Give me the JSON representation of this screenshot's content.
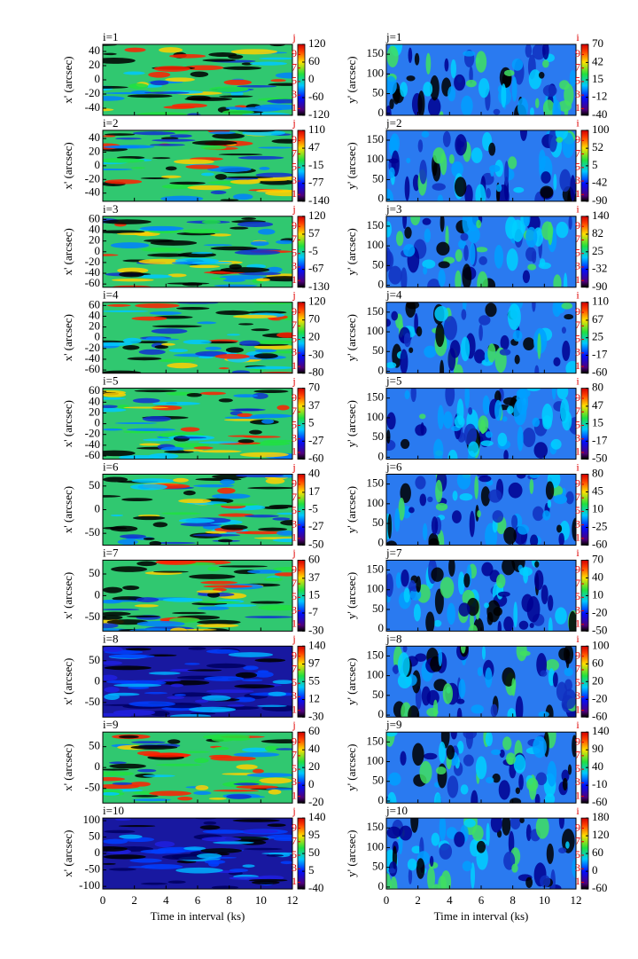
{
  "chart_data": [
    {
      "type": "heatmap",
      "title": "i=1",
      "ylabel": "x' (arcsec)",
      "xlim": [
        0,
        12
      ],
      "xticks": [
        0,
        2,
        4,
        6,
        8,
        10,
        12
      ],
      "ylim": [
        -50,
        50
      ],
      "yticks": [
        40,
        20,
        0,
        -20,
        -40
      ],
      "colorbar": {
        "index_label": "j",
        "index_lim": [
          0,
          10.5
        ],
        "index_ticks": [
          9,
          7,
          5,
          3,
          1
        ],
        "lim": [
          -120,
          120
        ],
        "ticks": [
          120,
          60,
          0,
          -60,
          -120
        ]
      }
    },
    {
      "type": "heatmap",
      "title": "j=1",
      "ylabel": "y' (arcsec)",
      "xlim": [
        0,
        12
      ],
      "xticks": [
        0,
        2,
        4,
        6,
        8,
        10,
        12
      ],
      "ylim": [
        -5,
        175
      ],
      "yticks": [
        150,
        100,
        50,
        0
      ],
      "colorbar": {
        "index_label": "i",
        "index_lim": [
          0,
          10.5
        ],
        "index_ticks": [
          9,
          7,
          5,
          3,
          1
        ],
        "lim": [
          -40,
          70
        ],
        "ticks": [
          70,
          42,
          15,
          -12,
          -40
        ]
      }
    },
    {
      "type": "heatmap",
      "title": "i=2",
      "ylabel": "x' (arcsec)",
      "xlim": [
        0,
        12
      ],
      "xticks": [
        0,
        2,
        4,
        6,
        8,
        10,
        12
      ],
      "ylim": [
        -52,
        52
      ],
      "yticks": [
        40,
        20,
        0,
        -20,
        -40
      ],
      "colorbar": {
        "index_label": "j",
        "index_lim": [
          0,
          10.5
        ],
        "index_ticks": [
          9,
          7,
          5,
          3,
          1
        ],
        "lim": [
          -140,
          110
        ],
        "ticks": [
          110,
          47,
          -15,
          -77,
          -140
        ]
      }
    },
    {
      "type": "heatmap",
      "title": "j=2",
      "ylabel": "y' (arcsec)",
      "xlim": [
        0,
        12
      ],
      "xticks": [
        0,
        2,
        4,
        6,
        8,
        10,
        12
      ],
      "ylim": [
        -5,
        175
      ],
      "yticks": [
        150,
        100,
        50,
        0
      ],
      "colorbar": {
        "index_label": "i",
        "index_lim": [
          0,
          10.5
        ],
        "index_ticks": [
          9,
          7,
          5,
          3,
          1
        ],
        "lim": [
          -90,
          100
        ],
        "ticks": [
          100,
          52,
          5,
          -42,
          -90
        ]
      }
    },
    {
      "type": "heatmap",
      "title": "i=3",
      "ylabel": "x' (arcsec)",
      "xlim": [
        0,
        12
      ],
      "xticks": [
        0,
        2,
        4,
        6,
        8,
        10,
        12
      ],
      "ylim": [
        -66,
        66
      ],
      "yticks": [
        60,
        40,
        20,
        0,
        -20,
        -40,
        -60
      ],
      "colorbar": {
        "index_label": "j",
        "index_lim": [
          0,
          10.5
        ],
        "index_ticks": [
          9,
          7,
          5,
          3,
          1
        ],
        "lim": [
          -130,
          120
        ],
        "ticks": [
          120,
          57,
          -5,
          -67,
          -130
        ]
      }
    },
    {
      "type": "heatmap",
      "title": "j=3",
      "ylabel": "y' (arcsec)",
      "xlim": [
        0,
        12
      ],
      "xticks": [
        0,
        2,
        4,
        6,
        8,
        10,
        12
      ],
      "ylim": [
        -5,
        175
      ],
      "yticks": [
        150,
        100,
        50,
        0
      ],
      "colorbar": {
        "index_label": "i",
        "index_lim": [
          0,
          10.5
        ],
        "index_ticks": [
          9,
          7,
          5,
          3,
          1
        ],
        "lim": [
          -90,
          140
        ],
        "ticks": [
          140,
          82,
          25,
          -32,
          -90
        ]
      }
    },
    {
      "type": "heatmap",
      "title": "i=4",
      "ylabel": "x' (arcsec)",
      "xlim": [
        0,
        12
      ],
      "xticks": [
        0,
        2,
        4,
        6,
        8,
        10,
        12
      ],
      "ylim": [
        -66,
        66
      ],
      "yticks": [
        60,
        40,
        20,
        0,
        -20,
        -40,
        -60
      ],
      "colorbar": {
        "index_label": "j",
        "index_lim": [
          0,
          10.5
        ],
        "index_ticks": [
          9,
          7,
          5,
          3,
          1
        ],
        "lim": [
          -80,
          120
        ],
        "ticks": [
          120,
          70,
          20,
          -30,
          -80
        ]
      }
    },
    {
      "type": "heatmap",
      "title": "j=4",
      "ylabel": "y' (arcsec)",
      "xlim": [
        0,
        12
      ],
      "xticks": [
        0,
        2,
        4,
        6,
        8,
        10,
        12
      ],
      "ylim": [
        -5,
        175
      ],
      "yticks": [
        150,
        100,
        50,
        0
      ],
      "colorbar": {
        "index_label": "i",
        "index_lim": [
          0,
          10.5
        ],
        "index_ticks": [
          9,
          7,
          5,
          3,
          1
        ],
        "lim": [
          -60,
          110
        ],
        "ticks": [
          110,
          67,
          25,
          -17,
          -60
        ]
      }
    },
    {
      "type": "heatmap",
      "title": "i=5",
      "ylabel": "x' (arcsec)",
      "xlim": [
        0,
        12
      ],
      "xticks": [
        0,
        2,
        4,
        6,
        8,
        10,
        12
      ],
      "ylim": [
        -66,
        66
      ],
      "yticks": [
        60,
        40,
        20,
        0,
        -20,
        -40,
        -60
      ],
      "colorbar": {
        "index_label": "j",
        "index_lim": [
          0,
          10.5
        ],
        "index_ticks": [
          9,
          7,
          5,
          3,
          1
        ],
        "lim": [
          -60,
          70
        ],
        "ticks": [
          70,
          37,
          5,
          -27,
          -60
        ]
      }
    },
    {
      "type": "heatmap",
      "title": "j=5",
      "ylabel": "y' (arcsec)",
      "xlim": [
        0,
        12
      ],
      "xticks": [
        0,
        2,
        4,
        6,
        8,
        10,
        12
      ],
      "ylim": [
        -5,
        175
      ],
      "yticks": [
        150,
        100,
        50,
        0
      ],
      "colorbar": {
        "index_label": "i",
        "index_lim": [
          0,
          10.5
        ],
        "index_ticks": [
          9,
          7,
          5,
          3,
          1
        ],
        "lim": [
          -50,
          80
        ],
        "ticks": [
          80,
          47,
          15,
          -17,
          -50
        ]
      }
    },
    {
      "type": "heatmap",
      "title": "i=6",
      "ylabel": "x' (arcsec)",
      "xlim": [
        0,
        12
      ],
      "xticks": [
        0,
        2,
        4,
        6,
        8,
        10,
        12
      ],
      "ylim": [
        -75,
        75
      ],
      "yticks": [
        50,
        0,
        -50
      ],
      "colorbar": {
        "index_label": "j",
        "index_lim": [
          0,
          10.5
        ],
        "index_ticks": [
          9,
          7,
          5,
          3,
          1
        ],
        "lim": [
          -50,
          40
        ],
        "ticks": [
          40,
          17,
          -5,
          -27,
          -50
        ]
      }
    },
    {
      "type": "heatmap",
      "title": "j=6",
      "ylabel": "y' (arcsec)",
      "xlim": [
        0,
        12
      ],
      "xticks": [
        0,
        2,
        4,
        6,
        8,
        10,
        12
      ],
      "ylim": [
        -5,
        175
      ],
      "yticks": [
        150,
        100,
        50,
        0
      ],
      "colorbar": {
        "index_label": "i",
        "index_lim": [
          0,
          10.5
        ],
        "index_ticks": [
          9,
          7,
          5,
          3,
          1
        ],
        "lim": [
          -60,
          80
        ],
        "ticks": [
          80,
          45,
          10,
          -25,
          -60
        ]
      }
    },
    {
      "type": "heatmap",
      "title": "i=7",
      "ylabel": "x' (arcsec)",
      "xlim": [
        0,
        12
      ],
      "xticks": [
        0,
        2,
        4,
        6,
        8,
        10,
        12
      ],
      "ylim": [
        -82,
        82
      ],
      "yticks": [
        50,
        0,
        -50
      ],
      "colorbar": {
        "index_label": "j",
        "index_lim": [
          0,
          10.5
        ],
        "index_ticks": [
          9,
          7,
          5,
          3,
          1
        ],
        "lim": [
          -30,
          60
        ],
        "ticks": [
          60,
          37,
          15,
          -7,
          -30
        ]
      }
    },
    {
      "type": "heatmap",
      "title": "j=7",
      "ylabel": "y' (arcsec)",
      "xlim": [
        0,
        12
      ],
      "xticks": [
        0,
        2,
        4,
        6,
        8,
        10,
        12
      ],
      "ylim": [
        -5,
        175
      ],
      "yticks": [
        150,
        100,
        50,
        0
      ],
      "colorbar": {
        "index_label": "i",
        "index_lim": [
          0,
          10.5
        ],
        "index_ticks": [
          9,
          7,
          5,
          3,
          1
        ],
        "lim": [
          -50,
          70
        ],
        "ticks": [
          70,
          40,
          10,
          -20,
          -50
        ]
      }
    },
    {
      "type": "heatmap",
      "title": "i=8",
      "ylabel": "x' (arcsec)",
      "xlim": [
        0,
        12
      ],
      "xticks": [
        0,
        2,
        4,
        6,
        8,
        10,
        12
      ],
      "ylim": [
        -85,
        85
      ],
      "yticks": [
        50,
        0,
        -50
      ],
      "colorbar": {
        "index_label": "j",
        "index_lim": [
          0,
          10.5
        ],
        "index_ticks": [
          9,
          7,
          5,
          3,
          1
        ],
        "lim": [
          -30,
          140
        ],
        "ticks": [
          140,
          97,
          55,
          12,
          -30
        ]
      }
    },
    {
      "type": "heatmap",
      "title": "j=8",
      "ylabel": "y' (arcsec)",
      "xlim": [
        0,
        12
      ],
      "xticks": [
        0,
        2,
        4,
        6,
        8,
        10,
        12
      ],
      "ylim": [
        -5,
        175
      ],
      "yticks": [
        150,
        100,
        50,
        0
      ],
      "colorbar": {
        "index_label": "i",
        "index_lim": [
          0,
          10.5
        ],
        "index_ticks": [
          9,
          7,
          5,
          3,
          1
        ],
        "lim": [
          -60,
          100
        ],
        "ticks": [
          100,
          60,
          20,
          -20,
          -60
        ]
      }
    },
    {
      "type": "heatmap",
      "title": "i=9",
      "ylabel": "x' (arcsec)",
      "xlim": [
        0,
        12
      ],
      "xticks": [
        0,
        2,
        4,
        6,
        8,
        10,
        12
      ],
      "ylim": [
        -85,
        85
      ],
      "yticks": [
        50,
        0,
        -50
      ],
      "colorbar": {
        "index_label": "j",
        "index_lim": [
          0,
          10.5
        ],
        "index_ticks": [
          9,
          7,
          5,
          3,
          1
        ],
        "lim": [
          -20,
          60
        ],
        "ticks": [
          60,
          40,
          20,
          0,
          -20
        ]
      }
    },
    {
      "type": "heatmap",
      "title": "j=9",
      "ylabel": "y' (arcsec)",
      "xlim": [
        0,
        12
      ],
      "xticks": [
        0,
        2,
        4,
        6,
        8,
        10,
        12
      ],
      "ylim": [
        -5,
        175
      ],
      "yticks": [
        150,
        100,
        50,
        0
      ],
      "colorbar": {
        "index_label": "i",
        "index_lim": [
          0,
          10.5
        ],
        "index_ticks": [
          9,
          7,
          5,
          3,
          1
        ],
        "lim": [
          -60,
          140
        ],
        "ticks": [
          140,
          90,
          40,
          -10,
          -60
        ]
      }
    },
    {
      "type": "heatmap",
      "title": "i=10",
      "ylabel": "x' (arcsec)",
      "xlabel": "Time in interval (ks)",
      "xlim": [
        0,
        12
      ],
      "xticks": [
        0,
        2,
        4,
        6,
        8,
        10,
        12
      ],
      "ylim": [
        -108,
        108
      ],
      "yticks": [
        100,
        50,
        0,
        -50,
        -100
      ],
      "colorbar": {
        "index_label": "j",
        "index_lim": [
          0,
          10.5
        ],
        "index_ticks": [
          9,
          7,
          5,
          3,
          1
        ],
        "lim": [
          -40,
          140
        ],
        "ticks": [
          140,
          95,
          50,
          5,
          -40
        ]
      }
    },
    {
      "type": "heatmap",
      "title": "j=10",
      "ylabel": "y' (arcsec)",
      "xlabel": "Time in interval (ks)",
      "xlim": [
        0,
        12
      ],
      "xticks": [
        0,
        2,
        4,
        6,
        8,
        10,
        12
      ],
      "ylim": [
        -5,
        175
      ],
      "yticks": [
        150,
        100,
        50,
        0
      ],
      "colorbar": {
        "index_label": "i",
        "index_lim": [
          0,
          10.5
        ],
        "index_ticks": [
          9,
          7,
          5,
          3,
          1
        ],
        "lim": [
          -60,
          180
        ],
        "ticks": [
          180,
          120,
          60,
          0,
          -60
        ]
      }
    }
  ]
}
